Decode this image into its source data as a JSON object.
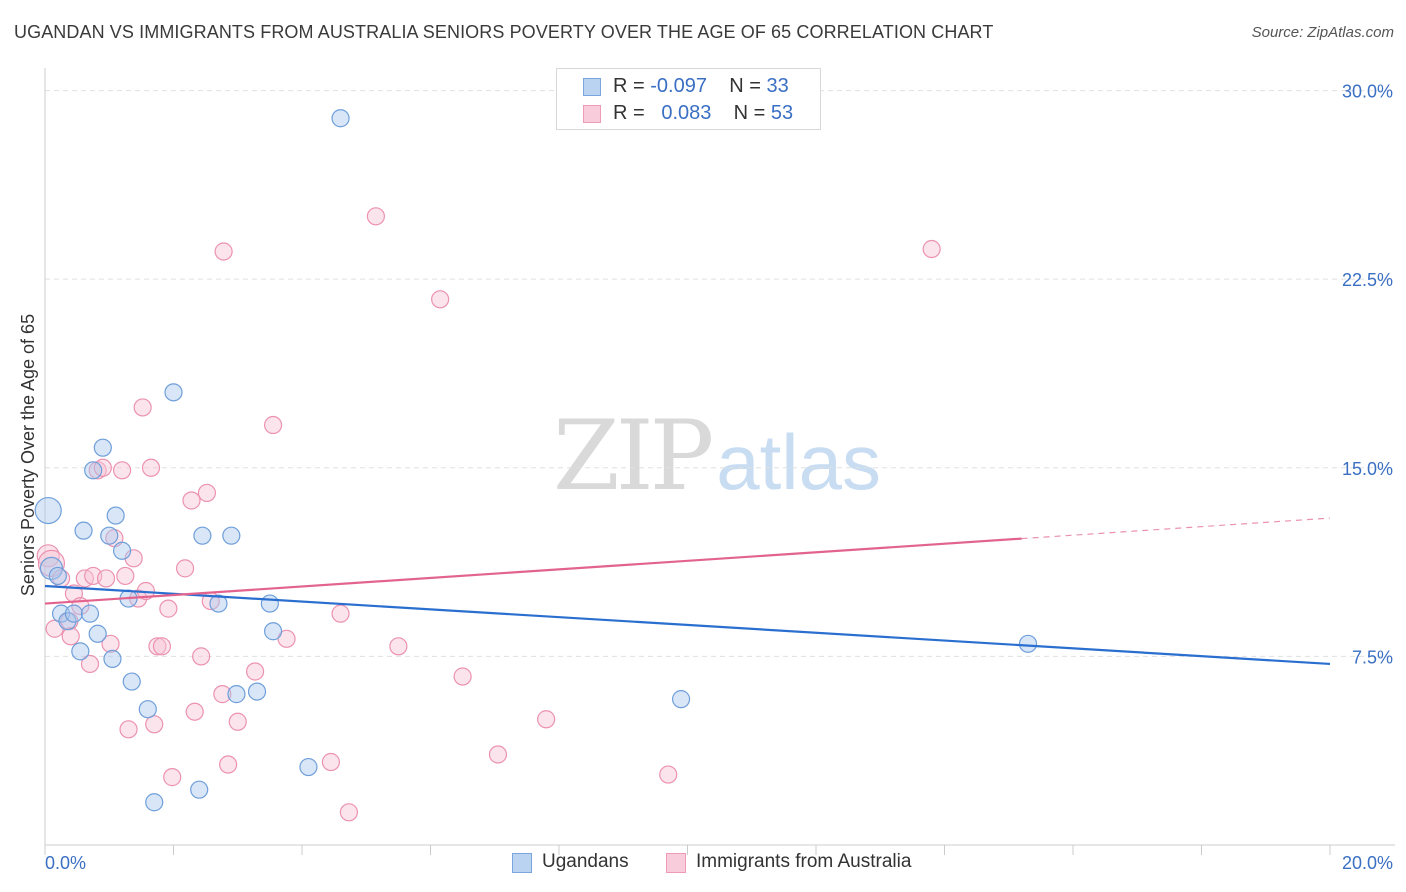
{
  "header": {
    "title": "UGANDAN VS IMMIGRANTS FROM AUSTRALIA SENIORS POVERTY OVER THE AGE OF 65 CORRELATION CHART",
    "source_label": "Source:",
    "source_value": "ZipAtlas.com"
  },
  "watermark": {
    "zip": "ZIP",
    "atlas": "atlas"
  },
  "legend_box": {
    "rows": [
      {
        "r_label": "R =",
        "r_value": "-0.097",
        "n_label": "N =",
        "n_value": "33"
      },
      {
        "r_label": "R =",
        "r_value": "0.083",
        "n_label": "N =",
        "n_value": "53"
      }
    ]
  },
  "bottom_legend": {
    "items": [
      {
        "label": "Ugandans"
      },
      {
        "label": "Immigrants from Australia"
      }
    ]
  },
  "colors": {
    "blue_fill": "#a9c8ee",
    "blue_stroke": "#6f9fda",
    "blue_line": "#2a6fcf",
    "pink_fill": "#f7c3d4",
    "pink_stroke": "#ec92b1",
    "pink_line": "#e2648e",
    "axis_text": "#3a6fc4",
    "grid": "#e0e0e0"
  },
  "chart_data": {
    "type": "scatter",
    "title": "UGANDAN VS IMMIGRANTS FROM AUSTRALIA SENIORS POVERTY OVER THE AGE OF 65 CORRELATION CHART",
    "xlabel": "",
    "ylabel": "Seniors Poverty Over the Age of 65",
    "xlim": [
      0,
      20
    ],
    "ylim": [
      0,
      30.5
    ],
    "x_tick_labels": [
      "0.0%",
      "20.0%"
    ],
    "y_ticks": [
      7.5,
      15.0,
      22.5,
      30.0
    ],
    "y_tick_labels": [
      "7.5%",
      "15.0%",
      "22.5%",
      "30.0%"
    ],
    "grid": true,
    "legend_position": "top-center",
    "series": [
      {
        "name": "Ugandans",
        "color": "blue",
        "R": -0.097,
        "N": 33,
        "trend": {
          "x": [
            0,
            20
          ],
          "y": [
            10.3,
            7.2
          ],
          "solid_until": 20
        },
        "points": [
          {
            "x": 0.05,
            "y": 13.3,
            "s": 3
          },
          {
            "x": 0.1,
            "y": 11.0,
            "s": 2
          },
          {
            "x": 0.2,
            "y": 10.7,
            "s": 1
          },
          {
            "x": 0.25,
            "y": 9.2,
            "s": 1
          },
          {
            "x": 0.35,
            "y": 8.9,
            "s": 1
          },
          {
            "x": 0.45,
            "y": 9.2,
            "s": 1
          },
          {
            "x": 0.55,
            "y": 7.7,
            "s": 1
          },
          {
            "x": 0.6,
            "y": 12.5,
            "s": 1
          },
          {
            "x": 0.7,
            "y": 9.2,
            "s": 1
          },
          {
            "x": 0.75,
            "y": 14.9,
            "s": 1
          },
          {
            "x": 0.82,
            "y": 8.4,
            "s": 1
          },
          {
            "x": 0.9,
            "y": 15.8,
            "s": 1
          },
          {
            "x": 1.0,
            "y": 12.3,
            "s": 1
          },
          {
            "x": 1.05,
            "y": 7.4,
            "s": 1
          },
          {
            "x": 1.1,
            "y": 13.1,
            "s": 1
          },
          {
            "x": 1.2,
            "y": 11.7,
            "s": 1
          },
          {
            "x": 1.3,
            "y": 9.8,
            "s": 1
          },
          {
            "x": 1.35,
            "y": 6.5,
            "s": 1
          },
          {
            "x": 1.6,
            "y": 5.4,
            "s": 1
          },
          {
            "x": 1.7,
            "y": 1.7,
            "s": 1
          },
          {
            "x": 2.0,
            "y": 18.0,
            "s": 1
          },
          {
            "x": 2.4,
            "y": 2.2,
            "s": 1
          },
          {
            "x": 2.45,
            "y": 12.3,
            "s": 1
          },
          {
            "x": 2.7,
            "y": 9.6,
            "s": 1
          },
          {
            "x": 2.9,
            "y": 12.3,
            "s": 1
          },
          {
            "x": 2.98,
            "y": 6.0,
            "s": 1
          },
          {
            "x": 3.3,
            "y": 6.1,
            "s": 1
          },
          {
            "x": 3.5,
            "y": 9.6,
            "s": 1
          },
          {
            "x": 3.55,
            "y": 8.5,
            "s": 1
          },
          {
            "x": 4.1,
            "y": 3.1,
            "s": 1
          },
          {
            "x": 4.6,
            "y": 28.9,
            "s": 1
          },
          {
            "x": 9.9,
            "y": 5.8,
            "s": 1
          },
          {
            "x": 15.3,
            "y": 8.0,
            "s": 1
          }
        ]
      },
      {
        "name": "Immigrants from Australia",
        "color": "pink",
        "R": 0.083,
        "N": 53,
        "trend": {
          "x": [
            0,
            20
          ],
          "y": [
            9.6,
            13.0
          ],
          "solid_until": 15.2
        },
        "points": [
          {
            "x": 0.05,
            "y": 11.5,
            "s": 2
          },
          {
            "x": 0.1,
            "y": 11.2,
            "s": 3
          },
          {
            "x": 0.15,
            "y": 8.6,
            "s": 1
          },
          {
            "x": 0.25,
            "y": 10.6,
            "s": 1
          },
          {
            "x": 0.38,
            "y": 8.9,
            "s": 1
          },
          {
            "x": 0.4,
            "y": 8.3,
            "s": 1
          },
          {
            "x": 0.45,
            "y": 10.0,
            "s": 1
          },
          {
            "x": 0.55,
            "y": 9.5,
            "s": 1
          },
          {
            "x": 0.62,
            "y": 10.6,
            "s": 1
          },
          {
            "x": 0.7,
            "y": 7.2,
            "s": 1
          },
          {
            "x": 0.75,
            "y": 10.7,
            "s": 1
          },
          {
            "x": 0.82,
            "y": 14.9,
            "s": 1
          },
          {
            "x": 0.9,
            "y": 15.0,
            "s": 1
          },
          {
            "x": 0.95,
            "y": 10.6,
            "s": 1
          },
          {
            "x": 1.02,
            "y": 8.0,
            "s": 1
          },
          {
            "x": 1.08,
            "y": 12.2,
            "s": 1
          },
          {
            "x": 1.2,
            "y": 14.9,
            "s": 1
          },
          {
            "x": 1.25,
            "y": 10.7,
            "s": 1
          },
          {
            "x": 1.3,
            "y": 4.6,
            "s": 1
          },
          {
            "x": 1.38,
            "y": 11.4,
            "s": 1
          },
          {
            "x": 1.45,
            "y": 9.8,
            "s": 1
          },
          {
            "x": 1.52,
            "y": 17.4,
            "s": 1
          },
          {
            "x": 1.57,
            "y": 10.1,
            "s": 1
          },
          {
            "x": 1.7,
            "y": 4.8,
            "s": 1
          },
          {
            "x": 1.65,
            "y": 15.0,
            "s": 1
          },
          {
            "x": 1.75,
            "y": 7.9,
            "s": 1
          },
          {
            "x": 1.82,
            "y": 7.9,
            "s": 1
          },
          {
            "x": 1.92,
            "y": 9.4,
            "s": 1
          },
          {
            "x": 1.98,
            "y": 2.7,
            "s": 1
          },
          {
            "x": 2.18,
            "y": 11.0,
            "s": 1
          },
          {
            "x": 2.28,
            "y": 13.7,
            "s": 1
          },
          {
            "x": 2.33,
            "y": 5.3,
            "s": 1
          },
          {
            "x": 2.43,
            "y": 7.5,
            "s": 1
          },
          {
            "x": 2.52,
            "y": 14.0,
            "s": 1
          },
          {
            "x": 2.58,
            "y": 9.7,
            "s": 1
          },
          {
            "x": 2.78,
            "y": 23.6,
            "s": 1
          },
          {
            "x": 2.76,
            "y": 6.0,
            "s": 1
          },
          {
            "x": 2.85,
            "y": 3.2,
            "s": 1
          },
          {
            "x": 3.0,
            "y": 4.9,
            "s": 1
          },
          {
            "x": 3.27,
            "y": 6.9,
            "s": 1
          },
          {
            "x": 3.55,
            "y": 16.7,
            "s": 1
          },
          {
            "x": 3.76,
            "y": 8.2,
            "s": 1
          },
          {
            "x": 4.45,
            "y": 3.3,
            "s": 1
          },
          {
            "x": 4.6,
            "y": 9.2,
            "s": 1
          },
          {
            "x": 4.73,
            "y": 1.3,
            "s": 1
          },
          {
            "x": 5.15,
            "y": 25.0,
            "s": 1
          },
          {
            "x": 5.5,
            "y": 7.9,
            "s": 1
          },
          {
            "x": 6.15,
            "y": 21.7,
            "s": 1
          },
          {
            "x": 6.5,
            "y": 6.7,
            "s": 1
          },
          {
            "x": 7.05,
            "y": 3.6,
            "s": 1
          },
          {
            "x": 7.8,
            "y": 5.0,
            "s": 1
          },
          {
            "x": 9.7,
            "y": 2.8,
            "s": 1
          },
          {
            "x": 13.8,
            "y": 23.7,
            "s": 1
          }
        ]
      }
    ]
  }
}
